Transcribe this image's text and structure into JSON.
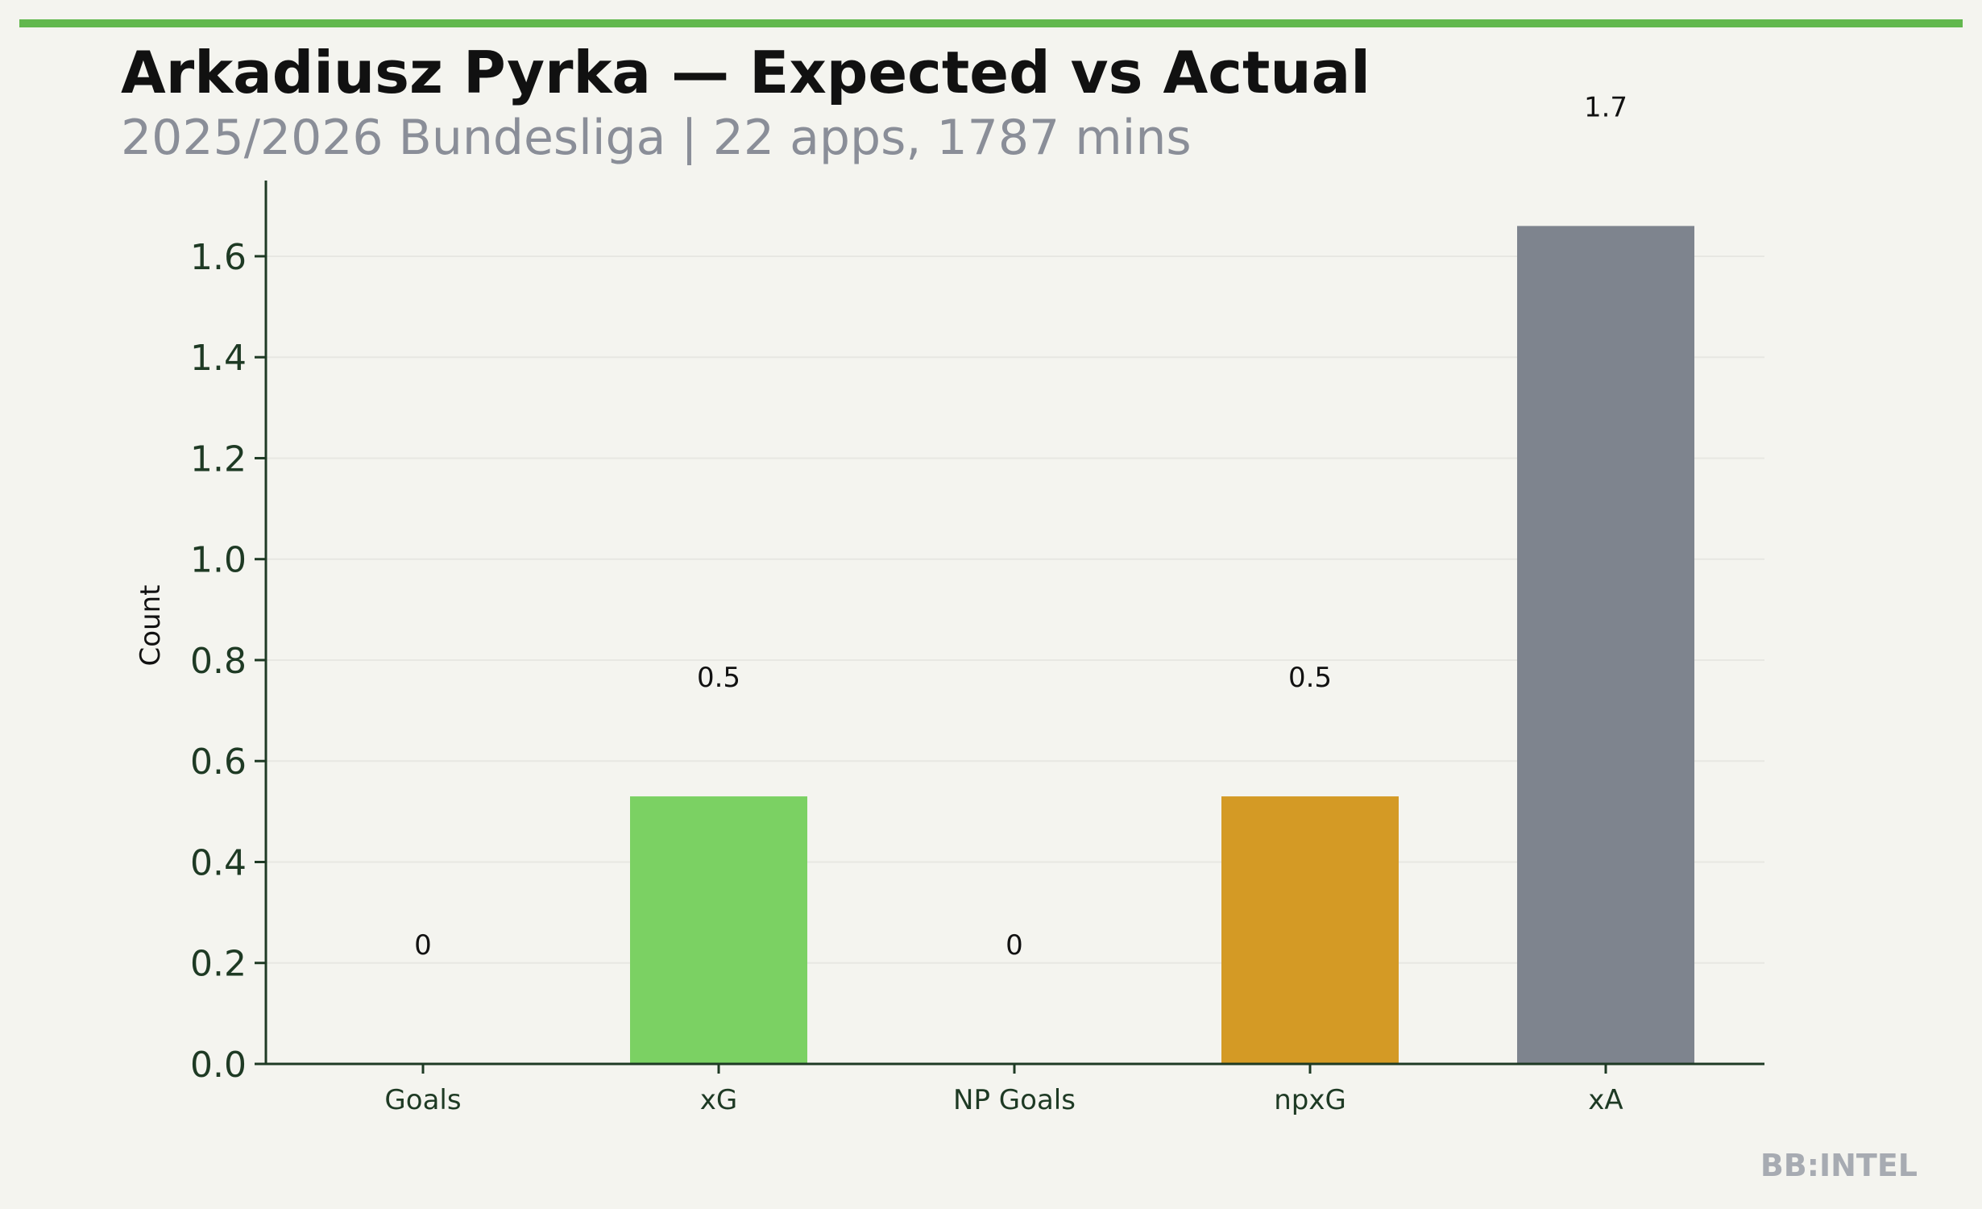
{
  "header": {
    "title": "Arkadiusz Pyrka — Expected vs Actual",
    "subtitle": "2025/2026 Bundesliga | 22 apps, 1787 mins",
    "accent_color": "#62b84e"
  },
  "footer": {
    "watermark": "BB:INTEL"
  },
  "chart_data": {
    "type": "bar",
    "categories": [
      "Goals",
      "xG",
      "NP Goals",
      "npxG",
      "xA"
    ],
    "values": [
      0,
      0.53,
      0,
      0.53,
      1.66
    ],
    "data_labels": [
      "0",
      "0.5",
      "0",
      "0.5",
      "1.7"
    ],
    "colors": [
      "#7bd163",
      "#7bd163",
      "#7bd163",
      "#d49a25",
      "#7e848e"
    ],
    "title": "",
    "xlabel": "",
    "ylabel": "Count",
    "ylim": [
      0,
      1.75
    ],
    "yticks": [
      0.0,
      0.2,
      0.4,
      0.6,
      0.8,
      1.0,
      1.2,
      1.4,
      1.6
    ],
    "ytick_labels": [
      "0.0",
      "0.2",
      "0.4",
      "0.6",
      "0.8",
      "1.0",
      "1.2",
      "1.4",
      "1.6"
    ],
    "grid": "horizontal",
    "legend": "none"
  }
}
